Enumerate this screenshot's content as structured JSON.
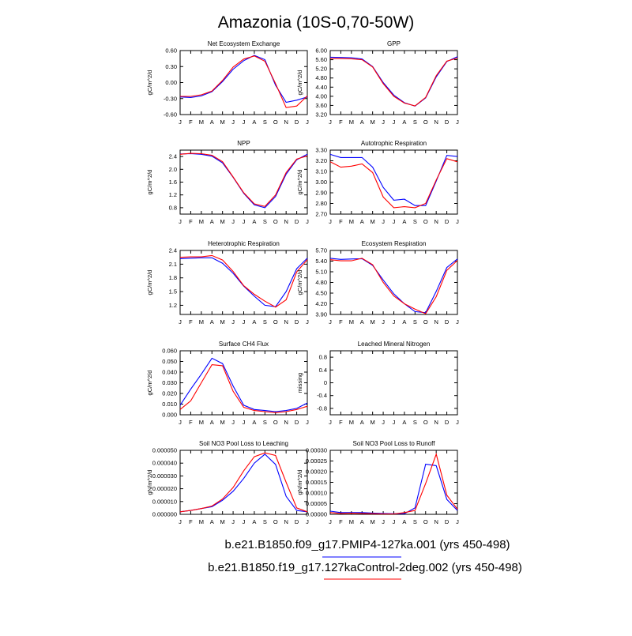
{
  "figure": {
    "title": "Amazonia (10S-0,70-50W)",
    "months": [
      "J",
      "F",
      "M",
      "A",
      "M",
      "J",
      "J",
      "A",
      "S",
      "O",
      "N",
      "D",
      "J"
    ],
    "legend": [
      {
        "label": "b.e21.B1850.f09_g17.PMIP4-127ka.001 (yrs 450-498)",
        "color": "#0000ff"
      },
      {
        "label": "b.e21.B1850.f19_g17.127kaControl-2deg.002 (yrs 450-498)",
        "color": "#ff0000"
      }
    ]
  },
  "chart_data": [
    {
      "type": "line",
      "title": "Net Ecosystem Exchange",
      "ylabel": "gC/m^2/d",
      "ylim": [
        -0.6,
        0.6
      ],
      "yticks": [
        -0.6,
        -0.3,
        0.0,
        0.3,
        0.6
      ],
      "ytick_labels": [
        "-0.60",
        "-0.30",
        "0.00",
        "0.30",
        "0.60"
      ],
      "series": [
        {
          "name": "PMIP4-127ka",
          "color": "#0000ff",
          "values": [
            -0.27,
            -0.28,
            -0.25,
            -0.17,
            0.02,
            0.25,
            0.41,
            0.51,
            0.43,
            -0.05,
            -0.37,
            -0.33,
            -0.27
          ]
        },
        {
          "name": "127kaControl",
          "color": "#ff0000",
          "values": [
            -0.26,
            -0.26,
            -0.23,
            -0.16,
            0.04,
            0.29,
            0.44,
            0.5,
            0.4,
            -0.02,
            -0.47,
            -0.44,
            -0.25
          ]
        }
      ]
    },
    {
      "type": "line",
      "title": "GPP",
      "ylabel": "gC/m^2/d",
      "ylim": [
        3.2,
        6.0
      ],
      "yticks": [
        3.2,
        3.6,
        4.0,
        4.4,
        4.8,
        5.2,
        5.6,
        6.0
      ],
      "ytick_labels": [
        "3.20",
        "3.60",
        "4.00",
        "4.40",
        "4.80",
        "5.20",
        "5.60",
        "6.00"
      ],
      "series": [
        {
          "name": "PMIP4-127ka",
          "color": "#0000ff",
          "values": [
            5.71,
            5.7,
            5.69,
            5.63,
            5.3,
            4.6,
            4.05,
            3.72,
            3.57,
            3.93,
            4.85,
            5.52,
            5.73
          ]
        },
        {
          "name": "127kaControl",
          "color": "#ff0000",
          "values": [
            5.65,
            5.65,
            5.64,
            5.6,
            5.28,
            4.55,
            4.0,
            3.7,
            3.58,
            3.95,
            4.9,
            5.54,
            5.67
          ]
        }
      ]
    },
    {
      "type": "line",
      "title": "NPP",
      "ylabel": "gC/m^2/d",
      "ylim": [
        0.6,
        2.6
      ],
      "yticks": [
        0.8,
        1.2,
        1.6,
        2.0,
        2.4
      ],
      "ytick_labels": [
        "0.8",
        "1.2",
        "1.6",
        "2.0",
        "2.4"
      ],
      "series": [
        {
          "name": "PMIP4-127ka",
          "color": "#0000ff",
          "values": [
            2.48,
            2.49,
            2.47,
            2.41,
            2.2,
            1.75,
            1.25,
            0.89,
            0.8,
            1.15,
            1.85,
            2.3,
            2.47
          ]
        },
        {
          "name": "127kaControl",
          "color": "#ff0000",
          "values": [
            2.47,
            2.5,
            2.49,
            2.44,
            2.24,
            1.76,
            1.27,
            0.92,
            0.84,
            1.2,
            1.9,
            2.32,
            2.42
          ]
        }
      ]
    },
    {
      "type": "line",
      "title": "Autotrophic Respiration",
      "ylabel": "gC/m^2/d",
      "ylim": [
        2.7,
        3.3
      ],
      "yticks": [
        2.7,
        2.8,
        2.9,
        3.0,
        3.1,
        3.2,
        3.3
      ],
      "ytick_labels": [
        "2.70",
        "2.80",
        "2.90",
        "3.00",
        "3.10",
        "3.20",
        "3.30"
      ],
      "series": [
        {
          "name": "PMIP4-127ka",
          "color": "#0000ff",
          "values": [
            3.26,
            3.23,
            3.23,
            3.23,
            3.14,
            2.95,
            2.83,
            2.84,
            2.78,
            2.78,
            3.01,
            3.25,
            3.24
          ]
        },
        {
          "name": "127kaControl",
          "color": "#ff0000",
          "values": [
            3.19,
            3.14,
            3.15,
            3.17,
            3.09,
            2.86,
            2.76,
            2.77,
            2.76,
            2.8,
            3.02,
            3.22,
            3.19
          ]
        }
      ]
    },
    {
      "type": "line",
      "title": "Heterotrophic Respiration",
      "ylabel": "gC/m^2/d",
      "ylim": [
        1.0,
        2.4
      ],
      "yticks": [
        1.2,
        1.5,
        1.8,
        2.1,
        2.4
      ],
      "ytick_labels": [
        "1.2",
        "1.5",
        "1.8",
        "2.1",
        "2.4"
      ],
      "series": [
        {
          "name": "PMIP4-127ka",
          "color": "#0000ff",
          "values": [
            2.22,
            2.23,
            2.24,
            2.24,
            2.12,
            1.9,
            1.62,
            1.4,
            1.2,
            1.17,
            1.5,
            2.0,
            2.23
          ]
        },
        {
          "name": "127kaControl",
          "color": "#ff0000",
          "values": [
            2.25,
            2.26,
            2.26,
            2.29,
            2.19,
            1.94,
            1.63,
            1.44,
            1.29,
            1.16,
            1.32,
            1.93,
            2.2
          ]
        }
      ]
    },
    {
      "type": "line",
      "title": "Ecosystem Respiration",
      "ylabel": "gC/m^2/d",
      "ylim": [
        3.9,
        5.7
      ],
      "yticks": [
        3.9,
        4.2,
        4.5,
        4.8,
        5.1,
        5.4,
        5.7
      ],
      "ytick_labels": [
        "3.90",
        "4.20",
        "4.50",
        "4.80",
        "5.10",
        "5.40",
        "5.70"
      ],
      "series": [
        {
          "name": "PMIP4-127ka",
          "color": "#0000ff",
          "values": [
            5.48,
            5.45,
            5.46,
            5.47,
            5.28,
            4.87,
            4.48,
            4.2,
            3.98,
            3.95,
            4.55,
            5.22,
            5.46
          ]
        },
        {
          "name": "127kaControl",
          "color": "#ff0000",
          "values": [
            5.44,
            5.41,
            5.41,
            5.48,
            5.3,
            4.8,
            4.42,
            4.2,
            4.05,
            3.92,
            4.4,
            5.14,
            5.42
          ]
        }
      ]
    },
    {
      "type": "line",
      "title": "Surface CH4 Flux",
      "ylabel": "gC/m^2/d",
      "ylim": [
        0.0,
        0.06
      ],
      "yticks": [
        0.0,
        0.01,
        0.02,
        0.03,
        0.04,
        0.05,
        0.06
      ],
      "ytick_labels": [
        "0.000",
        "0.010",
        "0.020",
        "0.030",
        "0.040",
        "0.050",
        "0.060"
      ],
      "series": [
        {
          "name": "PMIP4-127ka",
          "color": "#0000ff",
          "values": [
            0.009,
            0.024,
            0.038,
            0.053,
            0.048,
            0.027,
            0.009,
            0.005,
            0.004,
            0.003,
            0.004,
            0.006,
            0.011
          ]
        },
        {
          "name": "127kaControl",
          "color": "#ff0000",
          "values": [
            0.005,
            0.013,
            0.03,
            0.047,
            0.046,
            0.022,
            0.007,
            0.004,
            0.003,
            0.002,
            0.003,
            0.005,
            0.008
          ]
        }
      ]
    },
    {
      "type": "line",
      "title": "Leached Mineral Nitrogen",
      "ylabel": "missing",
      "ylim": [
        -1.0,
        1.0
      ],
      "yticks": [
        -0.8,
        -0.4,
        0.0,
        0.4,
        0.8
      ],
      "ytick_labels": [
        "-0.8",
        "-0.4",
        "0",
        "0.4",
        "0.8"
      ],
      "series": []
    },
    {
      "type": "line",
      "title": "Soil NO3 Pool Loss to Leaching",
      "ylabel": "gN/m^2/d",
      "ylim": [
        0.0,
        5e-05
      ],
      "yticks": [
        0.0,
        1e-05,
        2e-05,
        3e-05,
        4e-05,
        5e-05
      ],
      "ytick_labels": [
        "0.000000",
        "0.000010",
        "0.000020",
        "0.000030",
        "0.000040",
        "0.000050"
      ],
      "series": [
        {
          "name": "PMIP4-127ka",
          "color": "#0000ff",
          "values": [
            2e-06,
            3e-06,
            4.5e-06,
            6e-06,
            1.1e-05,
            1.8e-05,
            2.8e-05,
            4e-05,
            4.7e-05,
            3.9e-05,
            1.4e-05,
            3e-06,
            2e-06
          ]
        },
        {
          "name": "127kaControl",
          "color": "#ff0000",
          "values": [
            2e-06,
            3e-06,
            4.5e-06,
            6.5e-06,
            1.2e-05,
            2.1e-05,
            3.4e-05,
            4.5e-05,
            4.8e-05,
            4.6e-05,
            2.5e-05,
            5e-06,
            2e-06
          ]
        }
      ]
    },
    {
      "type": "line",
      "title": "Soil NO3 Pool Loss to Runoff",
      "ylabel": "gN/m^2/d",
      "ylim": [
        0.0,
        0.0003
      ],
      "yticks": [
        0.0,
        5e-05,
        0.0001,
        0.00015,
        0.0002,
        0.00025,
        0.0003
      ],
      "ytick_labels": [
        "0.00000",
        "0.00005",
        "0.00010",
        "0.00015",
        "0.00020",
        "0.00025",
        "0.00030"
      ],
      "series": [
        {
          "name": "PMIP4-127ka",
          "color": "#0000ff",
          "values": [
            1.5e-05,
            8e-06,
            8e-06,
            8e-06,
            6e-06,
            4e-06,
            3e-06,
            3e-06,
            3e-05,
            0.000235,
            0.000228,
            7e-05,
            1.8e-05
          ]
        },
        {
          "name": "127kaControl",
          "color": "#ff0000",
          "values": [
            8e-06,
            4e-06,
            5e-06,
            4e-06,
            3e-06,
            2e-06,
            2e-06,
            8e-06,
            1.8e-05,
            0.000145,
            0.000282,
            9e-05,
            2.4e-05
          ]
        }
      ]
    }
  ]
}
